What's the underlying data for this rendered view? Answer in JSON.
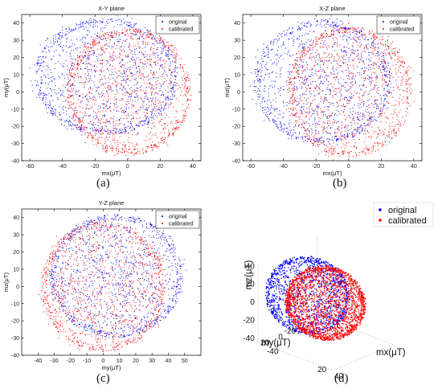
{
  "chart_data": [
    {
      "id": "a",
      "type": "scatter",
      "title": "X-Y plane",
      "xlabel": "mx(μT)",
      "ylabel": "my(μT)",
      "xlim": [
        -65,
        45
      ],
      "ylim": [
        -40,
        45
      ],
      "xticks": [
        -60,
        -40,
        -20,
        0,
        20,
        40
      ],
      "yticks": [
        -40,
        -30,
        -20,
        -10,
        0,
        10,
        20,
        30,
        40
      ],
      "grid": false,
      "legend_position": "top-right",
      "series": [
        {
          "name": "original",
          "color": "#0000ff",
          "shape": "ellipse",
          "center": [
            -13,
            9
          ],
          "radius": [
            44,
            34
          ],
          "count": 1300
        },
        {
          "name": "calibrated",
          "color": "#ff0000",
          "shape": "ellipse",
          "center": [
            1,
            0
          ],
          "radius": [
            38,
            37
          ],
          "count": 1300
        }
      ]
    },
    {
      "id": "b",
      "type": "scatter",
      "title": "X-Z plane",
      "xlabel": "mx(μT)",
      "ylabel": "mz(μT)",
      "xlim": [
        -65,
        45
      ],
      "ylim": [
        -40,
        45
      ],
      "xticks": [
        -60,
        -40,
        -20,
        0,
        20,
        40
      ],
      "yticks": [
        -40,
        -30,
        -20,
        -10,
        0,
        10,
        20,
        30,
        40
      ],
      "grid": false,
      "legend_position": "top-right",
      "series": [
        {
          "name": "original",
          "color": "#0000ff",
          "shape": "ellipse",
          "center": [
            -16,
            6
          ],
          "radius": [
            42,
            36
          ],
          "count": 1300
        },
        {
          "name": "calibrated",
          "color": "#ff0000",
          "shape": "ellipse",
          "center": [
            1,
            0
          ],
          "radius": [
            38,
            38
          ],
          "count": 1300
        }
      ]
    },
    {
      "id": "c",
      "type": "scatter",
      "title": "Y-Z plane",
      "xlabel": "my(μT)",
      "ylabel": "mz(μT)",
      "xlim": [
        -50,
        60
      ],
      "ylim": [
        -40,
        45
      ],
      "xticks": [
        -40,
        -30,
        -20,
        -10,
        0,
        10,
        20,
        30,
        40,
        50
      ],
      "yticks": [
        -40,
        -30,
        -20,
        -10,
        0,
        10,
        20,
        30,
        40
      ],
      "grid": false,
      "legend_position": "top-right",
      "series": [
        {
          "name": "original",
          "color": "#0000ff",
          "shape": "ellipse",
          "center": [
            8,
            6
          ],
          "radius": [
            41,
            36
          ],
          "count": 1300
        },
        {
          "name": "calibrated",
          "color": "#ff0000",
          "shape": "ellipse",
          "center": [
            0,
            0
          ],
          "radius": [
            38,
            38
          ],
          "count": 1300
        }
      ]
    },
    {
      "id": "d",
      "type": "scatter",
      "title": "",
      "projection": "3d",
      "xlabel": "mx(μT)",
      "ylabel": "my(μT)",
      "zlabel": "mz(μT)",
      "xticks": [
        -40,
        -20,
        0,
        20,
        40
      ],
      "yticks": [
        -40,
        -20,
        0,
        20,
        40
      ],
      "zticks": [
        -40,
        -20,
        0,
        20,
        40
      ],
      "legend_position": "top-right",
      "series": [
        {
          "name": "original",
          "color": "#0000ff",
          "shape": "sphere",
          "center": [
            -15,
            8,
            6
          ],
          "radius": 40,
          "count": 1400
        },
        {
          "name": "calibrated",
          "color": "#ff0000",
          "shape": "sphere",
          "center": [
            0,
            0,
            0
          ],
          "radius": 38,
          "count": 2200
        }
      ]
    }
  ],
  "captions": [
    "(a)",
    "(b)",
    "(c)",
    "(d)"
  ]
}
